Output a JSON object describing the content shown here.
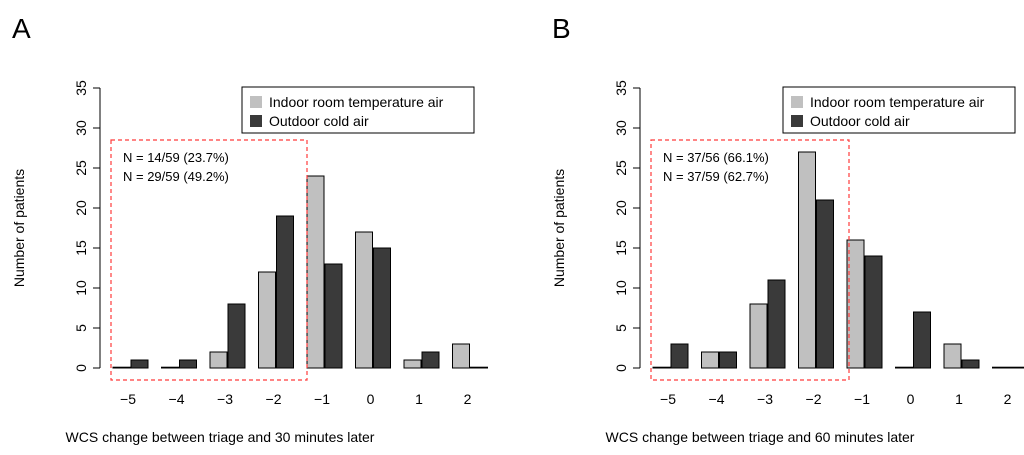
{
  "colors": {
    "series_light": "#c0c0c0",
    "series_dark": "#3a3a3a",
    "highlight_box": "#ff3b3b",
    "note_light": "#a8a8a8",
    "note_dark": "#000000"
  },
  "chart_data": [
    {
      "type": "bar",
      "panel": "A",
      "categories": [
        "−5",
        "−4",
        "−3",
        "−2",
        "−1",
        "0",
        "1",
        "2"
      ],
      "series": [
        {
          "name": "Indoor room temperature air",
          "color": "#c0c0c0",
          "values": [
            0,
            0,
            2,
            12,
            24,
            17,
            1,
            3
          ]
        },
        {
          "name": "Outdoor cold air",
          "color": "#3a3a3a",
          "values": [
            1,
            1,
            8,
            19,
            13,
            15,
            2,
            0
          ]
        }
      ],
      "xlabel": "WCS change between triage and 30 minutes later",
      "ylabel": "Number of patients",
      "ylim": [
        0,
        35
      ],
      "yticks": [
        0,
        5,
        10,
        15,
        20,
        25,
        30,
        35
      ],
      "grid": false,
      "legend": "top-right",
      "highlight": {
        "from_category": "−5",
        "to_category": "−2"
      },
      "annotations": [
        {
          "text": "N = 14/59 (23.7%)",
          "series": "Indoor room temperature air"
        },
        {
          "text": "N = 29/59 (49.2%)",
          "series": "Outdoor cold air"
        }
      ]
    },
    {
      "type": "bar",
      "panel": "B",
      "categories": [
        "−5",
        "−4",
        "−3",
        "−2",
        "−1",
        "0",
        "1",
        "2"
      ],
      "series": [
        {
          "name": "Indoor room temperature air",
          "color": "#c0c0c0",
          "values": [
            0,
            2,
            8,
            27,
            16,
            0,
            3,
            0
          ]
        },
        {
          "name": "Outdoor cold air",
          "color": "#3a3a3a",
          "values": [
            3,
            2,
            11,
            21,
            14,
            7,
            1,
            0
          ]
        }
      ],
      "xlabel": "WCS change between triage and 60 minutes later",
      "ylabel": "Number of patients",
      "ylim": [
        0,
        35
      ],
      "yticks": [
        0,
        5,
        10,
        15,
        20,
        25,
        30,
        35
      ],
      "grid": false,
      "legend": "top-right",
      "highlight": {
        "from_category": "−5",
        "to_category": "−2"
      },
      "annotations": [
        {
          "text": "N = 37/56 (66.1%)",
          "series": "Indoor room temperature air"
        },
        {
          "text": "N = 37/59 (62.7%)",
          "series": "Outdoor cold air"
        }
      ]
    }
  ]
}
